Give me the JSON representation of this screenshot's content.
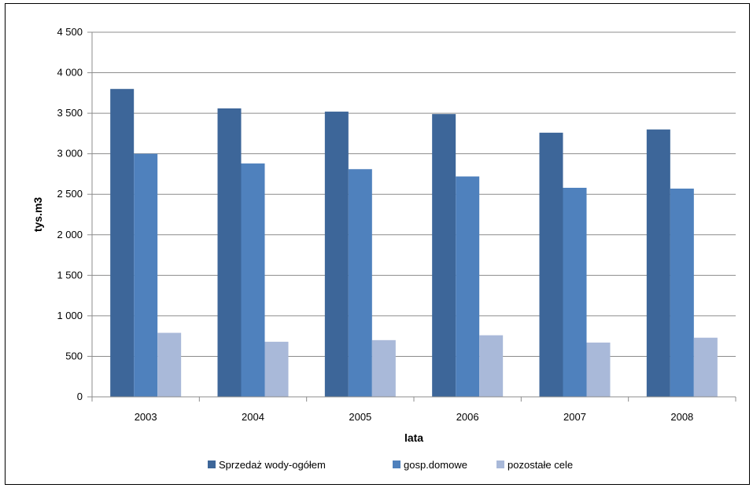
{
  "chart_data": {
    "type": "bar",
    "title": "",
    "xlabel": "lata",
    "ylabel": "tys.m3",
    "ylim": [
      0,
      4500
    ],
    "yticks": [
      0,
      500,
      1000,
      1500,
      2000,
      2500,
      3000,
      3500,
      4000,
      4500
    ],
    "ytick_labels": [
      "0",
      "500",
      "1 000",
      "1 500",
      "2 000",
      "2 500",
      "3 000",
      "3 500",
      "4 000",
      "4 500"
    ],
    "grid": true,
    "legend_position": "bottom",
    "categories": [
      "2003",
      "2004",
      "2005",
      "2006",
      "2007",
      "2008"
    ],
    "series": [
      {
        "name": "Sprzedaż wody-ogółem",
        "color": "#3D6699",
        "values": [
          3800,
          3560,
          3520,
          3490,
          3260,
          3300
        ]
      },
      {
        "name": "gosp.domowe",
        "color": "#4F81BD",
        "values": [
          3000,
          2880,
          2810,
          2720,
          2580,
          2570
        ]
      },
      {
        "name": "pozostałe cele",
        "color": "#A9B9D9",
        "values": [
          790,
          680,
          700,
          760,
          670,
          730
        ]
      }
    ]
  }
}
